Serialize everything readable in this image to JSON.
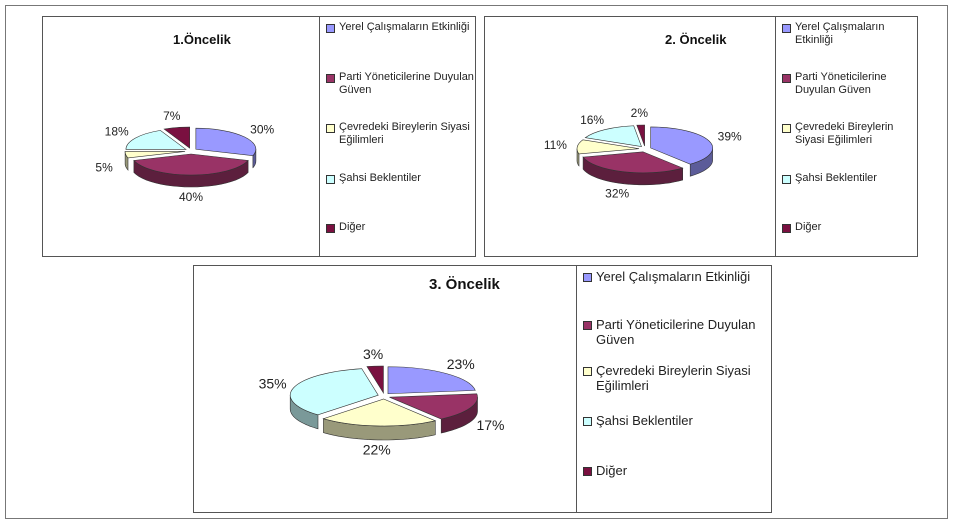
{
  "chart_data": [
    {
      "type": "pie",
      "title": "1.Öncelik",
      "categories": [
        "Yerel Çalışmaların Etkinliği",
        "Parti Yöneticilerine Duyulan Güven",
        "Çevredeki Bireylerin Siyasi Eğilimleri",
        "Şahsi Beklentiler",
        "Diğer"
      ],
      "values": [
        30,
        40,
        5,
        18,
        7
      ],
      "value_labels": [
        "30%",
        "40%",
        "5%",
        "18%",
        "7%"
      ],
      "colors": [
        "#9999ff",
        "#993366",
        "#ffffcc",
        "#ccffff",
        "#7a1040"
      ],
      "legend": "right"
    },
    {
      "type": "pie",
      "title": "2. Öncelik",
      "categories": [
        "Yerel Çalışmaların Etkinliği",
        "Parti Yöneticilerine Duyulan Güven",
        "Çevredeki Bireylerin Siyasi Eğilimleri",
        "Şahsi Beklentiler",
        "Diğer"
      ],
      "values": [
        39,
        32,
        11,
        16,
        2
      ],
      "value_labels": [
        "39%",
        "32%",
        "11%",
        "16%",
        "2%"
      ],
      "colors": [
        "#9999ff",
        "#993366",
        "#ffffcc",
        "#ccffff",
        "#7a1040"
      ],
      "legend": "right"
    },
    {
      "type": "pie",
      "title": "3. Öncelik",
      "categories": [
        "Yerel Çalışmaların Etkinliği",
        "Parti Yöneticilerine Duyulan Güven",
        "Çevredeki Bireylerin Siyasi Eğilimleri",
        "Şahsi Beklentiler",
        "Diğer"
      ],
      "values": [
        23,
        17,
        22,
        35,
        3
      ],
      "value_labels": [
        "23%",
        "17%",
        "22%",
        "35%",
        "3%"
      ],
      "colors": [
        "#9999ff",
        "#993366",
        "#ffffcc",
        "#ccffff",
        "#7a1040"
      ],
      "legend": "right"
    }
  ]
}
